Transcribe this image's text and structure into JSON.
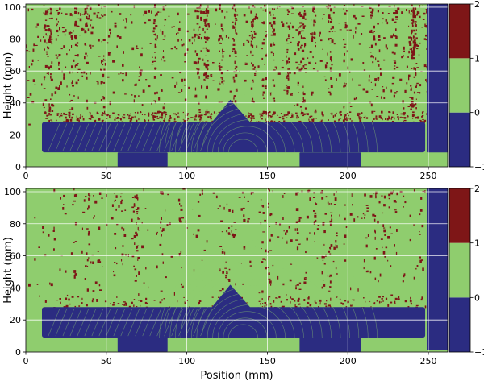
{
  "colors": {
    "class_neg1": "#2b2c81",
    "class_0": "#8fcd6e",
    "class_1": "#7e1617",
    "grid": "#ffffff",
    "axis": "#000000"
  },
  "chart_data": [
    {
      "type": "heatmap",
      "panel": "top",
      "title": "",
      "xlabel": "",
      "ylabel": "Height (mm)",
      "xlim": [
        0,
        262
      ],
      "ylim": [
        0,
        102
      ],
      "xticks": [
        0,
        50,
        100,
        150,
        200,
        250
      ],
      "yticks": [
        0,
        20,
        40,
        60,
        80,
        100
      ],
      "grid": true,
      "background_class": 0,
      "regions": [
        {
          "class": -1,
          "label": "main bar",
          "x": [
            10,
            248
          ],
          "y": [
            9,
            28
          ]
        },
        {
          "class": -1,
          "label": "left lower block",
          "x": [
            57,
            88
          ],
          "y": [
            0,
            9
          ]
        },
        {
          "class": -1,
          "label": "right lower block",
          "x": [
            170,
            208
          ],
          "y": [
            0,
            9
          ]
        },
        {
          "class": -1,
          "label": "triangular peak",
          "apex": [
            127,
            42
          ],
          "base": [
            114,
            141
          ],
          "base_y": 26
        },
        {
          "class": -1,
          "label": "right column",
          "x": [
            249,
            263
          ],
          "y": [
            9,
            102
          ]
        }
      ],
      "noise_class": 1,
      "noise_density_top": 0.14,
      "colorbar": {
        "ticks": [
          -1,
          0,
          1,
          2
        ],
        "range": [
          -1,
          2
        ],
        "levels": [
          {
            "from": -1,
            "to": 0,
            "class": -1
          },
          {
            "from": 0,
            "to": 1,
            "class": 0
          },
          {
            "from": 1,
            "to": 2,
            "class": 1
          }
        ]
      }
    },
    {
      "type": "heatmap",
      "panel": "bottom",
      "title": "",
      "xlabel": "Position (mm)",
      "ylabel": "Height (mm)",
      "xlim": [
        0,
        262
      ],
      "ylim": [
        0,
        102
      ],
      "xticks": [
        0,
        50,
        100,
        150,
        200,
        250
      ],
      "yticks": [
        0,
        20,
        40,
        60,
        80,
        100
      ],
      "grid": true,
      "background_class": 0,
      "regions": [
        {
          "class": -1,
          "label": "main bar",
          "x": [
            10,
            248
          ],
          "y": [
            9,
            28
          ]
        },
        {
          "class": -1,
          "label": "left lower block",
          "x": [
            57,
            88
          ],
          "y": [
            0,
            9
          ]
        },
        {
          "class": -1,
          "label": "right lower block",
          "x": [
            170,
            208
          ],
          "y": [
            0,
            9
          ]
        },
        {
          "class": -1,
          "label": "triangular peak",
          "apex": [
            127,
            42
          ],
          "base": [
            114,
            141
          ],
          "base_y": 26
        },
        {
          "class": -1,
          "label": "right column",
          "x": [
            249,
            263
          ],
          "y": [
            1,
            102
          ]
        }
      ],
      "noise_class": 1,
      "noise_density_top": 0.06,
      "colorbar": {
        "ticks": [
          -1,
          0,
          1,
          2
        ],
        "range": [
          -1,
          2
        ],
        "levels": [
          {
            "from": -1,
            "to": 0,
            "class": -1
          },
          {
            "from": 0,
            "to": 1,
            "class": 0
          },
          {
            "from": 1,
            "to": 2,
            "class": 1
          }
        ]
      }
    }
  ]
}
